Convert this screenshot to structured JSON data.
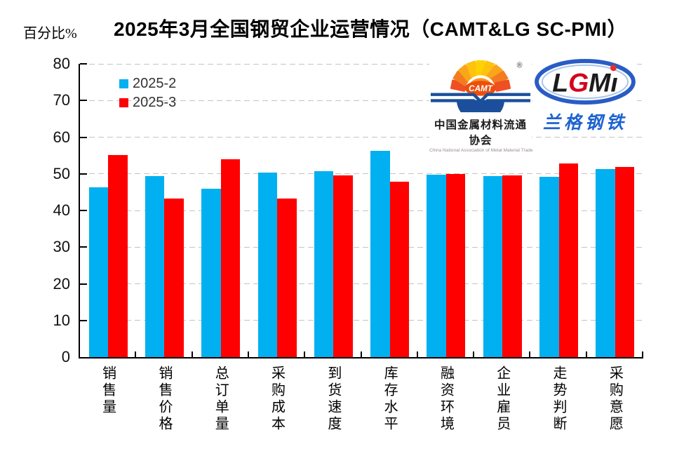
{
  "header": {
    "title": "2025年3月全国钢贸企业运营情况（CAMT&LG SC-PMI）",
    "y_axis_unit_label": "百分比%"
  },
  "legend": {
    "items": [
      {
        "label": "2025-2",
        "color": "#00B0F0"
      },
      {
        "label": "2025-3",
        "color": "#FF0000"
      }
    ]
  },
  "logos": {
    "camt": {
      "acronym": "CAMT",
      "registered_mark": "®",
      "name_cn": "中国金属材料流通协会",
      "name_en": "China National Association of Metal Material Trade"
    },
    "lgmi": {
      "acronym": "LGMi",
      "name_cn": "兰格钢铁"
    }
  },
  "chart_data": {
    "type": "bar",
    "title": "2025年3月全国钢贸企业运营情况（CAMT&LG SC-PMI）",
    "ylabel": "百分比%",
    "xlabel": "",
    "ylim": [
      0,
      80
    ],
    "ytick_step": 10,
    "grid": "horizontal-dashed",
    "legend_position": "top-left-inside",
    "categories": [
      "销售量",
      "销售价格",
      "总订单量",
      "采购成本",
      "到货速度",
      "库存水平",
      "融资环境",
      "企业雇员",
      "走势判断",
      "采购意愿"
    ],
    "series": [
      {
        "name": "2025-2",
        "color": "#00B0F0",
        "values": [
          46.4,
          49.4,
          45.9,
          50.4,
          50.8,
          56.2,
          49.8,
          49.3,
          49.2,
          51.2
        ]
      },
      {
        "name": "2025-3",
        "color": "#FF0000",
        "values": [
          55.1,
          43.2,
          54.0,
          43.2,
          49.6,
          47.8,
          49.9,
          49.5,
          52.8,
          51.8
        ]
      }
    ]
  }
}
